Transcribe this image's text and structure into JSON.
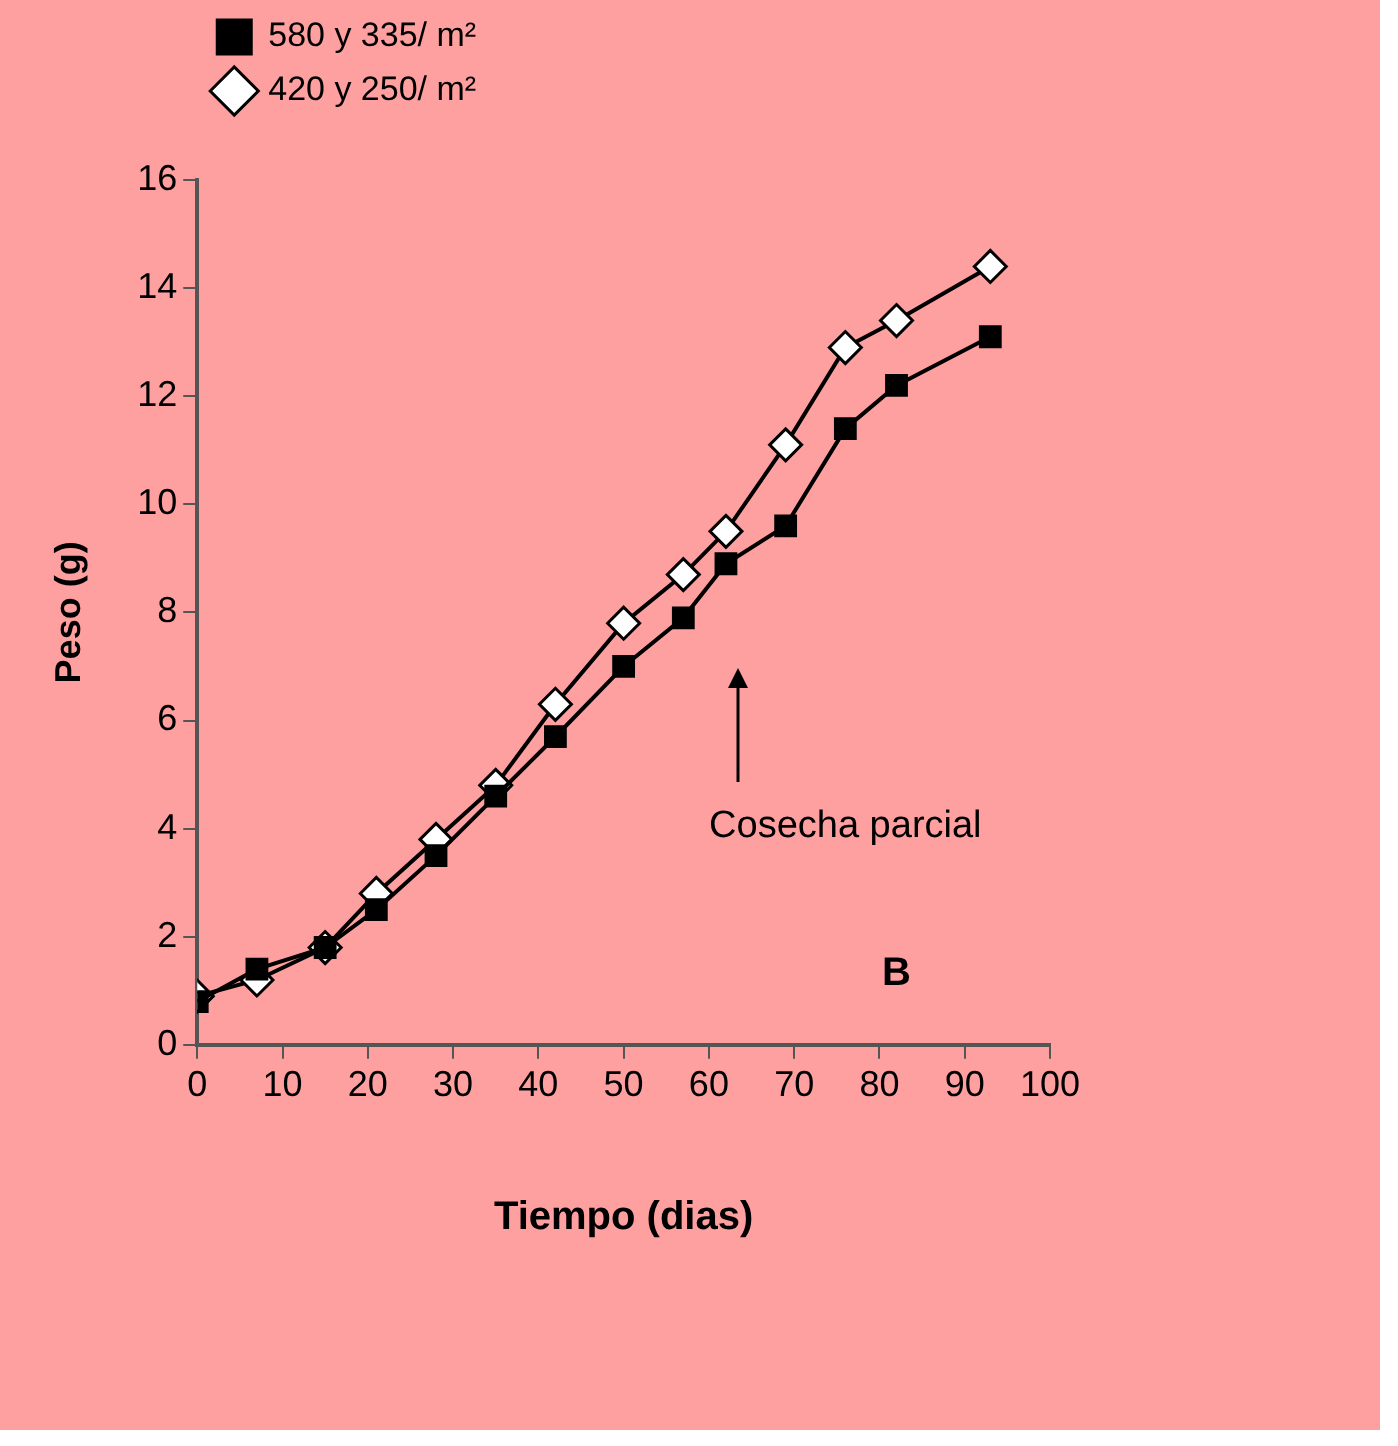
{
  "chart_data": {
    "type": "line",
    "xlabel": "Tiempo (dias)",
    "ylabel": "Peso (g)",
    "x": [
      0,
      7,
      15,
      21,
      28,
      35,
      42,
      50,
      57,
      62,
      69,
      76,
      82,
      93
    ],
    "series": [
      {
        "name": "420 y 250/ m²",
        "color": "#000000",
        "marker": "diamond",
        "values": [
          0.9,
          1.2,
          1.8,
          2.8,
          3.8,
          4.8,
          6.3,
          7.8,
          8.7,
          9.5,
          11.1,
          12.9,
          13.4,
          14.4
        ]
      },
      {
        "name": "580 y 335/ m²",
        "color": "#000000",
        "marker": "square",
        "values": [
          0.8,
          1.4,
          1.8,
          2.5,
          3.5,
          4.6,
          5.7,
          7.0,
          7.9,
          8.9,
          9.6,
          11.4,
          12.2,
          13.1
        ]
      }
    ],
    "xlim": [
      0,
      100
    ],
    "xticks": [
      0,
      10,
      20,
      30,
      40,
      50,
      60,
      70,
      80,
      90,
      100
    ],
    "ylim": [
      0,
      16
    ],
    "yticks": [
      0,
      2,
      4,
      6,
      8,
      10,
      12,
      14,
      16
    ],
    "grid": false,
    "legend": "top left",
    "line_style": "solid",
    "annotations": [
      "Cosecha parcial",
      "B"
    ]
  }
}
